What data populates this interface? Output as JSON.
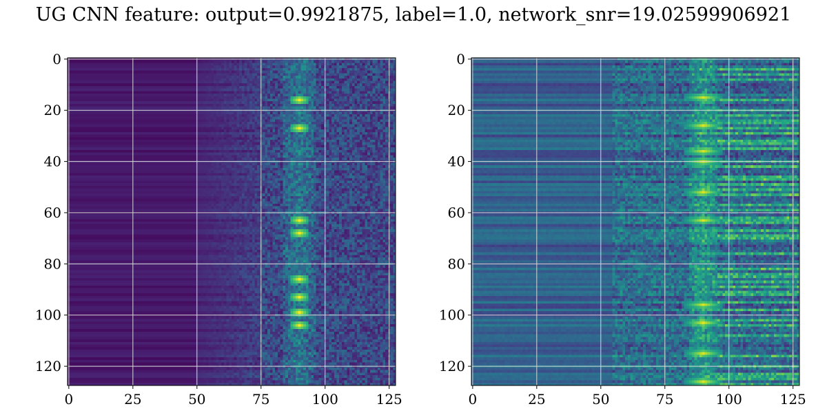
{
  "title": "UG CNN feature: output=0.9921875, label=1.0, network_snr=19.02599906921",
  "chart_data": [
    {
      "type": "heatmap",
      "colormap": "viridis",
      "shape": [
        128,
        128
      ],
      "xlim": [
        0,
        127
      ],
      "ylim": [
        127,
        0
      ],
      "grid": true,
      "xticks": [
        "0",
        "25",
        "50",
        "75",
        "100",
        "125"
      ],
      "yticks": [
        "0",
        "20",
        "40",
        "60",
        "80",
        "100",
        "120"
      ],
      "low_region_x": [
        0,
        50
      ],
      "signal_band_x": [
        85,
        95
      ],
      "bright_rows": [
        16,
        27,
        63,
        68,
        86,
        93,
        99,
        104
      ]
    },
    {
      "type": "heatmap",
      "colormap": "viridis",
      "shape": [
        128,
        128
      ],
      "xlim": [
        0,
        127
      ],
      "ylim": [
        127,
        0
      ],
      "grid": true,
      "xticks": [
        "0",
        "25",
        "50",
        "75",
        "100",
        "125"
      ],
      "yticks": [
        "0",
        "20",
        "40",
        "60",
        "80",
        "100",
        "120"
      ],
      "signal_band_x": [
        85,
        95
      ],
      "bright_rows": [
        15,
        26,
        36,
        40,
        52,
        63,
        96,
        103,
        115,
        126
      ]
    }
  ]
}
